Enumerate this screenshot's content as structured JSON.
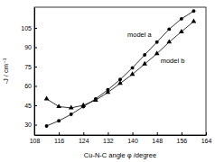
{
  "chart_data": {
    "type": "line",
    "x_label": "Cu-N-C angle φ /degree",
    "y_label": "-J / cm⁻¹",
    "x": [
      112,
      116,
      120,
      124,
      128,
      132,
      136,
      140,
      144,
      148,
      152,
      156,
      160
    ],
    "series": [
      {
        "name": "model a",
        "color": "#000000",
        "marker": "circle",
        "values": [
          29,
          33,
          38,
          44,
          50,
          57,
          65,
          74,
          84,
          94,
          104,
          112,
          118
        ]
      },
      {
        "name": "model b",
        "color": "#000000",
        "marker": "triangle",
        "values": [
          50,
          44,
          43,
          45,
          49,
          55,
          62,
          69,
          77,
          85,
          94,
          102,
          110
        ]
      }
    ],
    "xlim": [
      108,
      164
    ],
    "xticks": [
      108,
      116,
      124,
      132,
      140,
      148,
      156,
      164
    ],
    "ylim": [
      22,
      121
    ],
    "yticks": [
      30,
      45,
      60,
      75,
      90,
      105
    ],
    "grid": false
  }
}
